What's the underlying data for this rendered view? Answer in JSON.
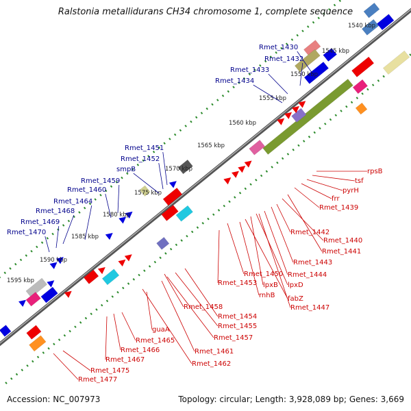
{
  "title": "Ralstonia metallidurans CH34 chromosome 1, complete sequence",
  "footer": {
    "accession": "Accession: NC_007973",
    "topology": "Topology: circular; Length: 3,928,089 bp; Genes: 3,669"
  },
  "colors": {
    "blue_label": "#00008b",
    "red_label": "#cc0000",
    "forward_gene": "#0000e0",
    "reverse_gene": "#ee0000",
    "backbone": "#777777",
    "tick_dots": "#2b8a2b"
  },
  "ruler": [
    "1540 kbp",
    "1545 kbp",
    "1550 kbp",
    "1555 kbp",
    "1560 kbp",
    "1565 kbp",
    "1570 kbp",
    "1575 kbp",
    "1580 kbp",
    "1585 kbp",
    "1590 kbp",
    "1595 kbp"
  ],
  "forward_labels": [
    "Rmet_1430",
    "Rmet_1432",
    "Rmet_1433",
    "Rmet_1434",
    "Rmet_1451",
    "Rmet_1452",
    "smpB",
    "Rmet_1459",
    "Rmet_1460",
    "Rmet_1464",
    "Rmet_1468",
    "Rmet_1469",
    "Rmet_1470"
  ],
  "reverse_labels": [
    "rpsB",
    "tsf",
    "pyrH",
    "frr",
    "Rmet_1439",
    "Rmet_1442",
    "Rmet_1440",
    "Rmet_1441",
    "Rmet_1443",
    "Rmet_1444",
    "Rmet_1450",
    "Rmet_1453",
    "lpxB",
    "lpxD",
    "rnhB",
    "fabZ",
    "Rmet_1447",
    "Rmet_1458",
    "Rmet_1454",
    "Rmet_1455",
    "Rmet_1457",
    "Rmet_1461",
    "Rmet_1462",
    "guaA",
    "Rmet_1465",
    "Rmet_1466",
    "Rmet_1467",
    "Rmet_1475",
    "Rmet_1477"
  ]
}
